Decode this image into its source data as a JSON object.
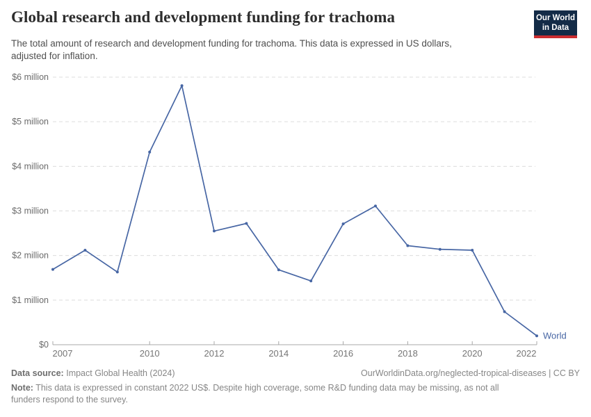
{
  "header": {
    "title": "Global research and development funding for trachoma",
    "subtitle": "The total amount of research and development funding for trachoma. This data is expressed in US dollars, adjusted for inflation.",
    "logo": {
      "line1": "Our World",
      "line2": "in Data"
    }
  },
  "colors": {
    "line": "#4766A4",
    "brand_navy": "#132b47",
    "brand_red": "#cb2d30",
    "gridline": "#dcdcdc",
    "axis": "#a8a8a8"
  },
  "chart_data": {
    "type": "line",
    "title": "Global research and development funding for trachoma",
    "unit": "US$ (constant 2022 US$), millions",
    "xlabel": "",
    "ylabel": "",
    "ylim": [
      0,
      6
    ],
    "grid": "dashed horizontal gridlines",
    "legend_position": "end-of-line label",
    "x": [
      2007,
      2008,
      2009,
      2010,
      2011,
      2012,
      2013,
      2014,
      2015,
      2016,
      2017,
      2018,
      2019,
      2020,
      2021,
      2022
    ],
    "series": [
      {
        "name": "World",
        "values": [
          1.69,
          2.12,
          1.63,
          4.32,
          5.81,
          2.55,
          2.72,
          1.68,
          1.43,
          2.71,
          3.11,
          2.22,
          2.14,
          2.12,
          0.74,
          0.2
        ]
      }
    ],
    "yticks": [
      {
        "value": 0,
        "label": "$0"
      },
      {
        "value": 1,
        "label": "$1 million"
      },
      {
        "value": 2,
        "label": "$2 million"
      },
      {
        "value": 3,
        "label": "$3 million"
      },
      {
        "value": 4,
        "label": "$4 million"
      },
      {
        "value": 5,
        "label": "$5 million"
      },
      {
        "value": 6,
        "label": "$6 million"
      }
    ],
    "xticks": [
      2007,
      2010,
      2012,
      2014,
      2016,
      2018,
      2020,
      2022
    ]
  },
  "footer": {
    "source_label": "Data source:",
    "source_value": "Impact Global Health (2024)",
    "attribution": "OurWorldinData.org/neglected-tropical-diseases | CC BY",
    "note_label": "Note:",
    "note_value": "This data is expressed in constant 2022 US$. Despite high coverage, some R&D funding data may be missing, as not all funders respond to the survey."
  }
}
